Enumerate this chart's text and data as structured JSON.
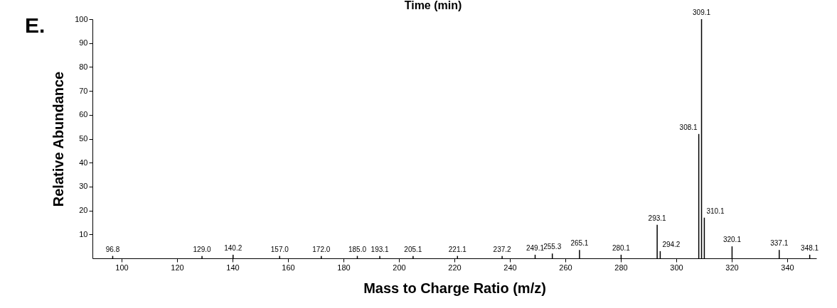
{
  "chart_data": {
    "type": "bar",
    "xlabel": "Mass to Charge Ratio (m/z)",
    "ylabel": "Relative Abundance",
    "x": [
      96.8,
      129.0,
      140.2,
      157.0,
      172.0,
      185.0,
      193.1,
      205.1,
      221.1,
      237.2,
      249.1,
      255.3,
      265.1,
      280.1,
      293.1,
      294.2,
      308.1,
      309.1,
      310.1,
      320.1,
      337.1,
      348.1
    ],
    "values": [
      1,
      1,
      1.5,
      1,
      1,
      1,
      1,
      1,
      1,
      1,
      1.5,
      2,
      3.5,
      1.5,
      14,
      3,
      52,
      100,
      17,
      5,
      3.5,
      1.5
    ],
    "color": "#000000",
    "xlim": [
      89.5,
      350.5
    ],
    "ylim": [
      0,
      100
    ],
    "xticks": [
      100,
      120,
      140,
      160,
      180,
      200,
      220,
      240,
      260,
      280,
      300,
      320,
      340
    ],
    "yticks": [
      10,
      20,
      30,
      40,
      50,
      60,
      70,
      80,
      90,
      100
    ],
    "grid": false,
    "annotations": [
      "E.",
      "Time (min)",
      {
        "text": "96.8",
        "x": 96.8,
        "y": 1
      },
      {
        "text": "129.0",
        "x": 129.0,
        "y": 1
      },
      {
        "text": "140.2",
        "x": 140.2,
        "y": 1.5
      },
      {
        "text": "157.0",
        "x": 157.0,
        "y": 1
      },
      {
        "text": "172.0",
        "x": 172.0,
        "y": 1
      },
      {
        "text": "185.0",
        "x": 185.0,
        "y": 1
      },
      {
        "text": "193.1",
        "x": 193.1,
        "y": 1
      },
      {
        "text": "205.1",
        "x": 205.1,
        "y": 1
      },
      {
        "text": "221.1",
        "x": 221.1,
        "y": 1
      },
      {
        "text": "237.2",
        "x": 237.2,
        "y": 1
      },
      {
        "text": "249.1",
        "x": 249.1,
        "y": 1.5
      },
      {
        "text": "255.3",
        "x": 255.3,
        "y": 2
      },
      {
        "text": "265.1",
        "x": 265.1,
        "y": 3.5
      },
      {
        "text": "280.1",
        "x": 280.1,
        "y": 1.5
      },
      {
        "text": "293.1",
        "x": 293.1,
        "y": 14
      },
      {
        "text": "294.2",
        "x": 294.2,
        "y": 3
      },
      {
        "text": "308.1",
        "x": 308.1,
        "y": 52
      },
      {
        "text": "309.1",
        "x": 309.1,
        "y": 100
      },
      {
        "text": "310.1",
        "x": 310.1,
        "y": 17
      },
      {
        "text": "320.1",
        "x": 320.1,
        "y": 5
      },
      {
        "text": "337.1",
        "x": 337.1,
        "y": 3.5
      },
      {
        "text": "348.1",
        "x": 348.1,
        "y": 1.5
      }
    ]
  }
}
